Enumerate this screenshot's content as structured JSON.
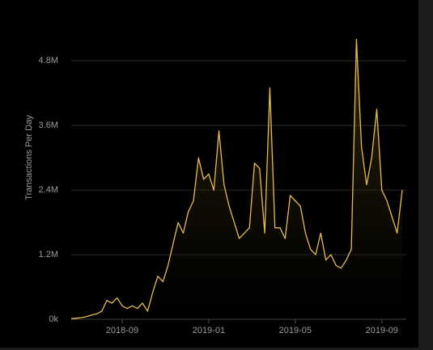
{
  "chart_data": {
    "type": "area",
    "y_label": "Transactions Per Day",
    "categories": [
      null,
      null,
      null,
      null,
      null,
      null,
      null,
      null,
      null,
      null,
      "2018-09",
      null,
      null,
      null,
      null,
      null,
      null,
      null,
      null,
      null,
      null,
      null,
      null,
      null,
      null,
      null,
      null,
      "2019-01",
      null,
      null,
      null,
      null,
      null,
      null,
      null,
      null,
      null,
      null,
      null,
      null,
      null,
      null,
      null,
      null,
      "2019-05",
      null,
      null,
      null,
      null,
      null,
      null,
      null,
      null,
      null,
      null,
      null,
      null,
      null,
      null,
      null,
      null,
      "2019-09",
      null,
      null,
      null,
      null
    ],
    "values": [
      10000,
      20000,
      30000,
      50000,
      80000,
      100000,
      150000,
      350000,
      300000,
      400000,
      250000,
      200000,
      250000,
      200000,
      300000,
      150000,
      500000,
      800000,
      700000,
      1000000,
      1400000,
      1800000,
      1600000,
      2000000,
      2200000,
      3000000,
      2600000,
      2700000,
      2400000,
      3500000,
      2500000,
      2100000,
      1800000,
      1500000,
      1600000,
      1700000,
      2900000,
      2800000,
      1600000,
      4300000,
      1700000,
      1700000,
      1500000,
      2300000,
      2200000,
      2100000,
      1600000,
      1300000,
      1200000,
      1600000,
      1100000,
      1200000,
      1000000,
      950000,
      1100000,
      1300000,
      5200000,
      3200000,
      2500000,
      3000000,
      3900000,
      2400000,
      2200000,
      1900000,
      1600000,
      2400000
    ],
    "color": "#e6bd4c",
    "ylim": [
      0,
      5300000
    ],
    "yticks": [
      {
        "value": 0,
        "label": "0k"
      },
      {
        "value": 1200000,
        "label": "1.2M"
      },
      {
        "value": 2400000,
        "label": "2.4M"
      },
      {
        "value": 3600000,
        "label": "3.6M"
      },
      {
        "value": 4800000,
        "label": "4.8M"
      }
    ],
    "grid": true
  }
}
